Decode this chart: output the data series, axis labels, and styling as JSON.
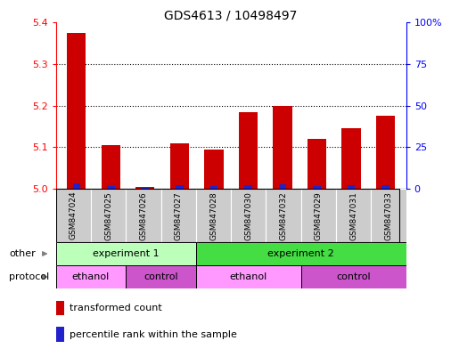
{
  "title": "GDS4613 / 10498497",
  "samples": [
    "GSM847024",
    "GSM847025",
    "GSM847026",
    "GSM847027",
    "GSM847028",
    "GSM847030",
    "GSM847032",
    "GSM847029",
    "GSM847031",
    "GSM847033"
  ],
  "transformed_count": [
    5.375,
    5.105,
    5.005,
    5.11,
    5.095,
    5.185,
    5.2,
    5.12,
    5.145,
    5.175
  ],
  "percentile_rank": [
    3.0,
    1.5,
    0.5,
    2.0,
    1.5,
    2.0,
    2.5,
    1.5,
    2.0,
    2.0
  ],
  "ylim": [
    5.0,
    5.4
  ],
  "yticks": [
    5.0,
    5.1,
    5.2,
    5.3,
    5.4
  ],
  "right_yticks": [
    0,
    25,
    50,
    75,
    100
  ],
  "right_ylim": [
    0,
    100
  ],
  "bar_color_red": "#cc0000",
  "bar_color_blue": "#2222cc",
  "bar_width": 0.55,
  "blue_bar_width": 0.22,
  "experiment1_color": "#bbffbb",
  "experiment2_color": "#44dd44",
  "ethanol_color": "#ff99ff",
  "control_color": "#cc55cc",
  "sample_bg_color": "#cccccc",
  "title_fontsize": 10,
  "tick_fontsize": 8,
  "label_fontsize": 8,
  "legend_fontsize": 8
}
